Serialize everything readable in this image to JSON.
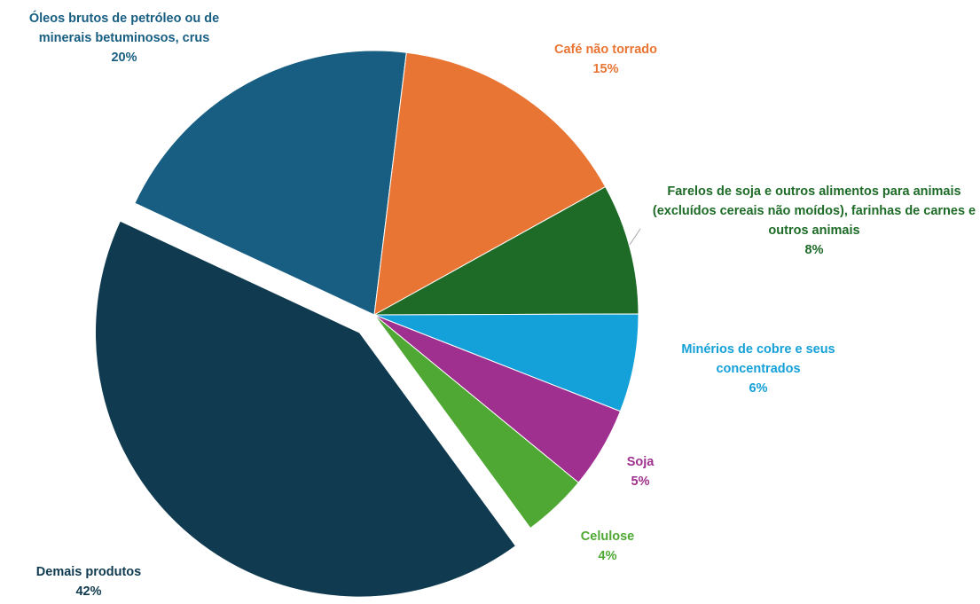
{
  "chart_data": {
    "type": "pie",
    "categories": [
      "Óleos brutos de petróleo ou de minerais betuminosos, crus",
      "Café não torrado",
      "Farelos de soja e outros alimentos para animais (excluídos cereais não moídos), farinhas de carnes e outros animais",
      "Minérios de cobre e seus concentrados",
      "Soja",
      "Celulose",
      "Demais produtos"
    ],
    "values": [
      20,
      15,
      8,
      6,
      5,
      4,
      42
    ],
    "value_labels": [
      "20%",
      "15%",
      "8%",
      "6%",
      "5%",
      "4%",
      "42%"
    ],
    "colors": [
      "#175e82",
      "#e97534",
      "#1d6b27",
      "#14a0d8",
      "#a0308f",
      "#4ea833",
      "#0f3a50"
    ],
    "exploded": [
      "Demais produtos"
    ]
  }
}
